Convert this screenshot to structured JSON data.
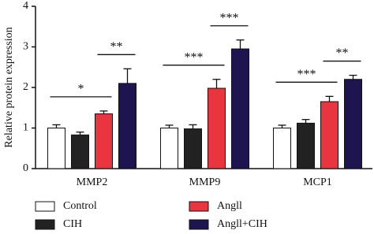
{
  "chart_data": {
    "type": "bar",
    "y_label": "Relative protein expression",
    "categories": [
      "MMP2",
      "MMP9",
      "MCP1"
    ],
    "series": [
      {
        "name": "Control",
        "color": "#ffffff",
        "values": [
          1.0,
          1.0,
          1.0
        ],
        "errors": [
          0.08,
          0.07,
          0.07
        ]
      },
      {
        "name": "CIH",
        "color": "#222222",
        "values": [
          0.83,
          0.98,
          1.12
        ],
        "errors": [
          0.07,
          0.1,
          0.09
        ]
      },
      {
        "name": "Angll",
        "color": "#e8353f",
        "values": [
          1.35,
          1.98,
          1.65
        ],
        "errors": [
          0.07,
          0.22,
          0.13
        ]
      },
      {
        "name": "Angll+CIH",
        "color": "#1e1450",
        "values": [
          2.1,
          2.95,
          2.2
        ],
        "errors": [
          0.36,
          0.22,
          0.1
        ]
      }
    ],
    "comparisons": [
      {
        "label": "*",
        "category": "MMP2",
        "series": [
          "Control",
          "Angll"
        ]
      },
      {
        "label": "**",
        "category": "MMP2",
        "series": [
          "Angll",
          "Angll+CIH"
        ]
      },
      {
        "label": "***",
        "category": "MMP9",
        "series": [
          "Control",
          "Angll"
        ]
      },
      {
        "label": "***",
        "category": "MMP9",
        "series": [
          "Angll",
          "Angll+CIH"
        ]
      },
      {
        "label": "***",
        "category": "MCP1",
        "series": [
          "Control",
          "Angll"
        ]
      },
      {
        "label": "**",
        "category": "MCP1",
        "series": [
          "Angll",
          "Angll+CIH"
        ]
      }
    ],
    "ylim": [
      0,
      4
    ],
    "yticks": [
      0,
      1,
      2,
      3,
      4
    ]
  }
}
